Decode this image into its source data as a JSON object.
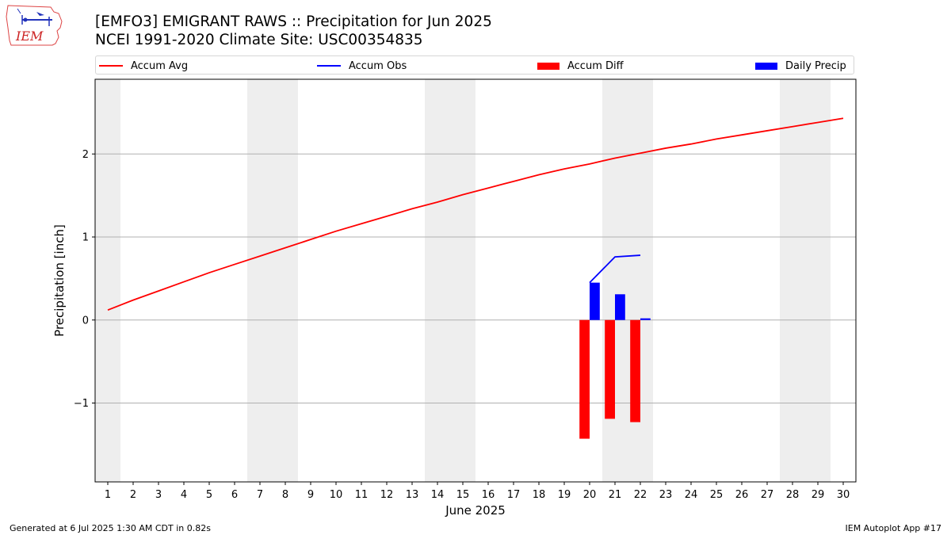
{
  "header": {
    "title": "[EMFO3] EMIGRANT RAWS :: Precipitation for Jun 2025",
    "subtitle": "NCEI 1991-2020 Climate Site: USC00354835"
  },
  "logo": {
    "text": "IEM",
    "icon": "iowa-state-outline-weather-logo"
  },
  "footer": {
    "left": "Generated at 6 Jul 2025 1:30 AM CDT in 0.82s",
    "right": "IEM Autoplot App #17"
  },
  "chart_data": {
    "type": "bar",
    "xlabel": "June 2025",
    "ylabel": "Precipitation [inch]",
    "xlim": [
      0.5,
      30.5
    ],
    "ylim": [
      -1.95,
      2.9
    ],
    "yticks": [
      -1,
      0,
      1,
      2
    ],
    "ytick_labels": [
      "−1",
      "0",
      "1",
      "2"
    ],
    "days": [
      1,
      2,
      3,
      4,
      5,
      6,
      7,
      8,
      9,
      10,
      11,
      12,
      13,
      14,
      15,
      16,
      17,
      18,
      19,
      20,
      21,
      22,
      23,
      24,
      25,
      26,
      27,
      28,
      29,
      30
    ],
    "grid": "horizontal",
    "weekend_shading": [
      [
        0.5,
        1.5
      ],
      [
        6.5,
        8.5
      ],
      [
        13.5,
        15.5
      ],
      [
        20.5,
        22.5
      ],
      [
        27.5,
        29.5
      ]
    ],
    "legend_position": "top",
    "legend": [
      {
        "label": "Accum Avg",
        "kind": "line",
        "color": "#ff0000"
      },
      {
        "label": "Accum Obs",
        "kind": "line",
        "color": "#0000ff"
      },
      {
        "label": "Accum Diff",
        "kind": "patch",
        "color": "#ff0000"
      },
      {
        "label": "Daily Precip",
        "kind": "patch",
        "color": "#0000ff"
      }
    ],
    "series": [
      {
        "name": "Accum Avg",
        "type": "line",
        "color": "#ff0000",
        "x": [
          1,
          2,
          3,
          4,
          5,
          6,
          7,
          8,
          9,
          10,
          11,
          12,
          13,
          14,
          15,
          16,
          17,
          18,
          19,
          20,
          21,
          22,
          23,
          24,
          25,
          26,
          27,
          28,
          29,
          30
        ],
        "values": [
          0.12,
          0.24,
          0.35,
          0.46,
          0.57,
          0.67,
          0.77,
          0.87,
          0.97,
          1.07,
          1.16,
          1.25,
          1.34,
          1.42,
          1.51,
          1.59,
          1.67,
          1.75,
          1.82,
          1.88,
          1.95,
          2.01,
          2.07,
          2.12,
          2.18,
          2.23,
          2.28,
          2.33,
          2.38,
          2.43
        ]
      },
      {
        "name": "Accum Obs",
        "type": "line",
        "color": "#0000ff",
        "x": [
          20,
          21,
          22
        ],
        "values": [
          0.45,
          0.76,
          0.78
        ]
      },
      {
        "name": "Accum Diff",
        "type": "bar",
        "color": "#ff0000",
        "x": [
          20,
          21,
          22
        ],
        "values": [
          -1.43,
          -1.19,
          -1.23
        ]
      },
      {
        "name": "Daily Precip",
        "type": "bar",
        "color": "#0000ff",
        "x": [
          20,
          21,
          22
        ],
        "values": [
          0.45,
          0.31,
          0.02
        ]
      }
    ]
  }
}
